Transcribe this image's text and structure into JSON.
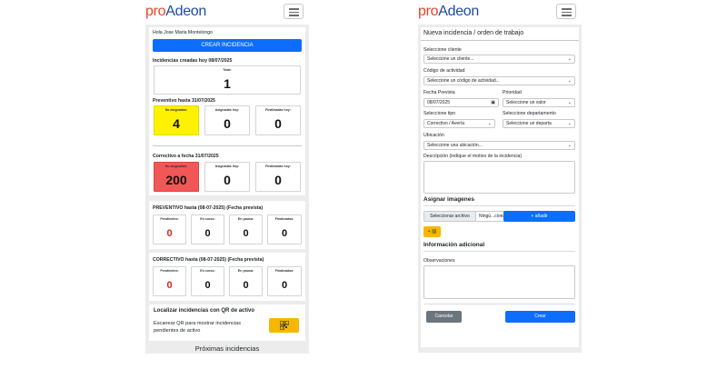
{
  "brand": {
    "pro": "pro",
    "adeon": "Adeon"
  },
  "left": {
    "greeting": "Hola Jose Maria Montelongo",
    "create_button": "CREAR INCIDENCIA",
    "today_title": "Incidencias creadas hoy 08/07/2025",
    "total_label": "Total:",
    "total_value": "1",
    "preventive_title": "Preventivo hasta 31/07/2025",
    "corrective_title": "Correctivo a fecha 31/07/2025",
    "label_unassigned": "No asignadas:",
    "label_assigned_today": "Asignadas hoy:",
    "label_finished_today": "Finalizadas hoy:",
    "prev_unassigned": "4",
    "prev_assigned": "0",
    "prev_finished": "0",
    "corr_unassigned": "200",
    "corr_assigned": "0",
    "corr_finished": "0",
    "prev_table_title": "PREVENTIVO hasta (08-07-2025) (Fecha prevista)",
    "corr_table_title": "CORRECTIVO hasta (08-07-2025) (Fecha prevista)",
    "label_pending": "Pendientes:",
    "label_in_progress": "En curso:",
    "label_paused": "En pausa:",
    "label_finished": "Finalizadas:",
    "prev_counts": [
      "0",
      "0",
      "0",
      "0"
    ],
    "corr_counts": [
      "0",
      "0",
      "0",
      "0"
    ],
    "qr_title": "Localizar incidencias con QR de activo",
    "qr_text_1": "Escanear QR para mostrar incidencias",
    "qr_text_2": "pendientes de activo",
    "upcoming": "Próximas incidencias"
  },
  "right": {
    "form_title": "Nueva incidencia / orden de trabajo",
    "client_label": "Seleccione cliente",
    "client_value": "Seleccione un cliente...",
    "activity_label": "Código de actividad",
    "activity_value": "Seleccione un código de actividad...",
    "date_label": "Fecha Prevista",
    "date_value": "08/07/2025",
    "priority_label": "Prioridad",
    "priority_value": "Seleccione un valor",
    "type_label": "Seleccione tipo",
    "type_value": "Correctivo / Avería",
    "dept_label": "Seleccione departamento",
    "dept_value": "Seleccione un departa",
    "location_label": "Ubicación",
    "location_value": "Seleccione una ubicación...",
    "description_label": "Descripción (indique el motivo de la incidencia)",
    "images_title": "Asignar imagenes",
    "file_button": "Seleccionar archivo",
    "file_none": "Ningú...cionado",
    "add_button": "+ añadir",
    "extra_title": "Información adicional",
    "observations_label": "Observaciones",
    "cancel_button": "Cancelar",
    "create_button": "Crear"
  },
  "colors": {
    "accent": "#0d6efd",
    "warning": "#fff200",
    "danger": "#f25757",
    "qr": "#f5b700",
    "cancel": "#6c757d",
    "brand_red": "#e8452c",
    "brand_blue": "#1f4aa6"
  }
}
